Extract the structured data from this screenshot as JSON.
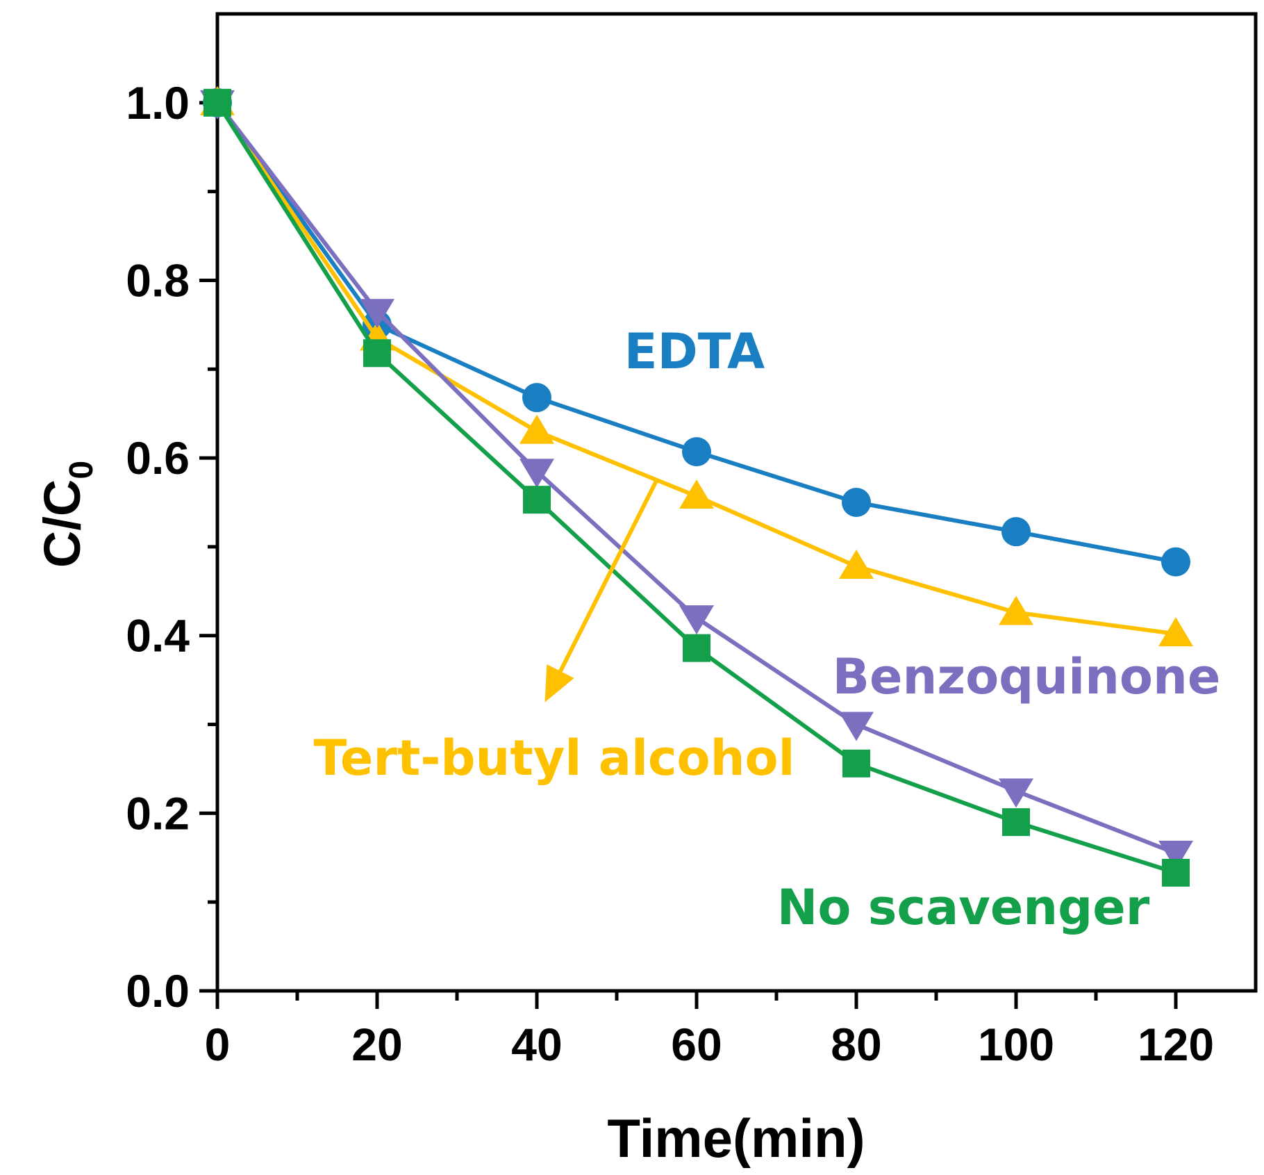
{
  "chart_data": {
    "type": "line",
    "title": "",
    "xlabel": "Time(min)",
    "ylabel": {
      "main": "C/C",
      "subscript": "0"
    },
    "xlim": [
      0,
      130
    ],
    "ylim": [
      0,
      1.1
    ],
    "x": [
      0,
      20,
      40,
      60,
      80,
      100,
      120
    ],
    "x_ticks": [
      "0",
      "20",
      "40",
      "60",
      "80",
      "100",
      "120"
    ],
    "y_ticks": [
      "0.0",
      "0.2",
      "0.4",
      "0.6",
      "0.8",
      "1.0"
    ],
    "grid": false,
    "series": [
      {
        "name": "EDTA",
        "label": "EDTA",
        "color": "#1a7fc2",
        "marker": "circle",
        "values": [
          1.0,
          0.75,
          0.668,
          0.607,
          0.55,
          0.517,
          0.483
        ]
      },
      {
        "name": "Tert-butyl alcohol",
        "label": "Tert-butyl alcohol",
        "color": "#ffc000",
        "marker": "triangle-up",
        "values": [
          1.0,
          0.735,
          0.63,
          0.557,
          0.478,
          0.426,
          0.402
        ]
      },
      {
        "name": "Benzoquinone",
        "label": "Benzoquinone",
        "color": "#7b6fc0",
        "marker": "triangle-down",
        "values": [
          1.0,
          0.765,
          0.585,
          0.42,
          0.3,
          0.225,
          0.155
        ]
      },
      {
        "name": "No scavenger",
        "label": "No scavenger",
        "color": "#14a04a",
        "marker": "square",
        "values": [
          1.0,
          0.718,
          0.553,
          0.386,
          0.256,
          0.19,
          0.133
        ]
      }
    ],
    "annotations": [
      {
        "type": "arrow",
        "from": [
          55,
          0.575
        ],
        "to": [
          41,
          0.325
        ],
        "color": "#ffc000"
      }
    ]
  }
}
